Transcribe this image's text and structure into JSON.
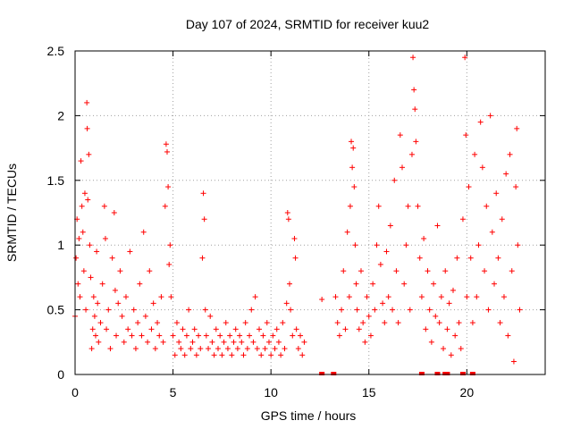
{
  "chart_data": {
    "type": "scatter",
    "title": "Day 107 of 2024, SRMTID for receiver kuu2",
    "xlabel": "GPS time / hours",
    "ylabel": "SRMTID / TECUs",
    "xlim": [
      0,
      24
    ],
    "ylim": [
      0,
      2.5
    ],
    "xticks": [
      0,
      5,
      10,
      15,
      20
    ],
    "xtick_labels": [
      "0",
      "5",
      "10",
      "15",
      "20"
    ],
    "yticks": [
      0,
      0.5,
      1,
      1.5,
      2,
      2.5
    ],
    "ytick_labels": [
      "0",
      "0.5",
      "1",
      "1.5",
      "2",
      "2.5"
    ],
    "grid": true,
    "marker": "plus",
    "color": "#ff0000",
    "series": [
      {
        "name": "SRMTID",
        "points": [
          [
            0.0,
            0.45
          ],
          [
            0.05,
            0.9
          ],
          [
            0.1,
            1.2
          ],
          [
            0.15,
            0.7
          ],
          [
            0.2,
            1.05
          ],
          [
            0.25,
            0.6
          ],
          [
            0.3,
            1.65
          ],
          [
            0.35,
            1.3
          ],
          [
            0.4,
            1.1
          ],
          [
            0.45,
            0.8
          ],
          [
            0.5,
            1.4
          ],
          [
            0.55,
            0.5
          ],
          [
            0.6,
            2.1
          ],
          [
            0.62,
            1.9
          ],
          [
            0.65,
            1.35
          ],
          [
            0.7,
            1.7
          ],
          [
            0.75,
            1.0
          ],
          [
            0.8,
            0.75
          ],
          [
            0.85,
            0.2
          ],
          [
            0.9,
            0.35
          ],
          [
            0.95,
            0.6
          ],
          [
            1.0,
            0.45
          ],
          [
            1.05,
            0.3
          ],
          [
            1.1,
            0.95
          ],
          [
            1.15,
            0.55
          ],
          [
            1.2,
            0.25
          ],
          [
            1.3,
            0.4
          ],
          [
            1.4,
            0.7
          ],
          [
            1.5,
            1.3
          ],
          [
            1.55,
            1.05
          ],
          [
            1.6,
            0.35
          ],
          [
            1.7,
            0.5
          ],
          [
            1.8,
            0.2
          ],
          [
            1.9,
            0.9
          ],
          [
            2.0,
            1.25
          ],
          [
            2.05,
            0.65
          ],
          [
            2.1,
            0.3
          ],
          [
            2.2,
            0.55
          ],
          [
            2.3,
            0.8
          ],
          [
            2.4,
            0.45
          ],
          [
            2.5,
            0.25
          ],
          [
            2.6,
            0.6
          ],
          [
            2.7,
            0.35
          ],
          [
            2.8,
            0.95
          ],
          [
            2.9,
            0.3
          ],
          [
            3.0,
            0.5
          ],
          [
            3.1,
            0.2
          ],
          [
            3.2,
            0.4
          ],
          [
            3.3,
            0.7
          ],
          [
            3.4,
            0.3
          ],
          [
            3.5,
            1.1
          ],
          [
            3.6,
            0.45
          ],
          [
            3.7,
            0.25
          ],
          [
            3.8,
            0.8
          ],
          [
            3.9,
            0.35
          ],
          [
            4.0,
            0.55
          ],
          [
            4.1,
            0.2
          ],
          [
            4.2,
            0.4
          ],
          [
            4.3,
            0.3
          ],
          [
            4.4,
            0.6
          ],
          [
            4.5,
            0.25
          ],
          [
            4.6,
            1.3
          ],
          [
            4.65,
            1.78
          ],
          [
            4.7,
            1.72
          ],
          [
            4.75,
            1.45
          ],
          [
            4.8,
            0.85
          ],
          [
            4.85,
            1.0
          ],
          [
            4.9,
            0.6
          ],
          [
            5.0,
            0.3
          ],
          [
            5.1,
            0.15
          ],
          [
            5.2,
            0.4
          ],
          [
            5.3,
            0.25
          ],
          [
            5.4,
            0.2
          ],
          [
            5.5,
            0.35
          ],
          [
            5.6,
            0.15
          ],
          [
            5.7,
            0.3
          ],
          [
            5.8,
            0.5
          ],
          [
            5.9,
            0.2
          ],
          [
            6.0,
            0.25
          ],
          [
            6.1,
            0.35
          ],
          [
            6.2,
            0.15
          ],
          [
            6.3,
            0.3
          ],
          [
            6.4,
            0.2
          ],
          [
            6.5,
            0.9
          ],
          [
            6.55,
            1.4
          ],
          [
            6.6,
            1.2
          ],
          [
            6.65,
            0.5
          ],
          [
            6.7,
            0.3
          ],
          [
            6.8,
            0.2
          ],
          [
            6.9,
            0.45
          ],
          [
            7.0,
            0.25
          ],
          [
            7.1,
            0.15
          ],
          [
            7.2,
            0.35
          ],
          [
            7.3,
            0.2
          ],
          [
            7.4,
            0.3
          ],
          [
            7.5,
            0.15
          ],
          [
            7.6,
            0.25
          ],
          [
            7.7,
            0.4
          ],
          [
            7.8,
            0.2
          ],
          [
            7.9,
            0.3
          ],
          [
            8.0,
            0.15
          ],
          [
            8.1,
            0.25
          ],
          [
            8.2,
            0.35
          ],
          [
            8.3,
            0.2
          ],
          [
            8.4,
            0.3
          ],
          [
            8.5,
            0.25
          ],
          [
            8.6,
            0.15
          ],
          [
            8.7,
            0.4
          ],
          [
            8.8,
            0.2
          ],
          [
            8.9,
            0.3
          ],
          [
            9.0,
            0.5
          ],
          [
            9.1,
            0.25
          ],
          [
            9.2,
            0.6
          ],
          [
            9.3,
            0.2
          ],
          [
            9.4,
            0.35
          ],
          [
            9.5,
            0.15
          ],
          [
            9.6,
            0.3
          ],
          [
            9.7,
            0.2
          ],
          [
            9.8,
            0.4
          ],
          [
            9.9,
            0.25
          ],
          [
            10.0,
            0.15
          ],
          [
            10.1,
            0.3
          ],
          [
            10.2,
            0.2
          ],
          [
            10.3,
            0.35
          ],
          [
            10.4,
            0.25
          ],
          [
            10.5,
            0.15
          ],
          [
            10.6,
            0.4
          ],
          [
            10.7,
            0.2
          ],
          [
            10.8,
            0.55
          ],
          [
            10.85,
            1.25
          ],
          [
            10.9,
            1.2
          ],
          [
            10.95,
            0.7
          ],
          [
            11.0,
            0.5
          ],
          [
            11.1,
            0.3
          ],
          [
            11.2,
            1.05
          ],
          [
            11.25,
            0.9
          ],
          [
            11.3,
            0.35
          ],
          [
            11.4,
            0.2
          ],
          [
            11.5,
            0.3
          ],
          [
            11.6,
            0.15
          ],
          [
            11.7,
            0.25
          ],
          [
            12.6,
            0.58
          ],
          [
            13.3,
            0.6
          ],
          [
            13.4,
            0.4
          ],
          [
            13.5,
            0.3
          ],
          [
            13.6,
            0.5
          ],
          [
            13.7,
            0.8
          ],
          [
            13.8,
            0.35
          ],
          [
            13.9,
            1.1
          ],
          [
            14.0,
            0.6
          ],
          [
            14.05,
            1.3
          ],
          [
            14.1,
            1.8
          ],
          [
            14.15,
            1.6
          ],
          [
            14.2,
            1.75
          ],
          [
            14.25,
            1.45
          ],
          [
            14.3,
            1.0
          ],
          [
            14.35,
            0.7
          ],
          [
            14.4,
            0.5
          ],
          [
            14.5,
            0.35
          ],
          [
            14.6,
            0.8
          ],
          [
            14.7,
            0.4
          ],
          [
            14.8,
            0.25
          ],
          [
            14.9,
            0.6
          ],
          [
            15.0,
            0.45
          ],
          [
            15.1,
            0.3
          ],
          [
            15.2,
            0.7
          ],
          [
            15.3,
            0.5
          ],
          [
            15.4,
            1.0
          ],
          [
            15.5,
            1.3
          ],
          [
            15.6,
            0.85
          ],
          [
            15.7,
            0.55
          ],
          [
            15.8,
            0.4
          ],
          [
            15.9,
            0.95
          ],
          [
            16.0,
            0.6
          ],
          [
            16.1,
            1.15
          ],
          [
            16.2,
            0.5
          ],
          [
            16.3,
            1.5
          ],
          [
            16.4,
            0.8
          ],
          [
            16.5,
            0.4
          ],
          [
            16.6,
            1.85
          ],
          [
            16.7,
            1.6
          ],
          [
            16.8,
            0.7
          ],
          [
            16.9,
            1.0
          ],
          [
            17.0,
            1.3
          ],
          [
            17.1,
            0.5
          ],
          [
            17.2,
            1.7
          ],
          [
            17.25,
            2.45
          ],
          [
            17.3,
            2.2
          ],
          [
            17.35,
            2.05
          ],
          [
            17.4,
            1.8
          ],
          [
            17.5,
            1.3
          ],
          [
            17.6,
            0.9
          ],
          [
            17.7,
            0.6
          ],
          [
            17.8,
            1.05
          ],
          [
            17.9,
            0.35
          ],
          [
            18.0,
            0.8
          ],
          [
            18.1,
            0.5
          ],
          [
            18.2,
            0.25
          ],
          [
            18.3,
            0.7
          ],
          [
            18.4,
            0.45
          ],
          [
            18.5,
            1.15
          ],
          [
            18.6,
            0.4
          ],
          [
            18.7,
            0.6
          ],
          [
            18.8,
            0.2
          ],
          [
            18.9,
            0.8
          ],
          [
            19.0,
            0.35
          ],
          [
            19.1,
            0.55
          ],
          [
            19.2,
            0.15
          ],
          [
            19.3,
            0.65
          ],
          [
            19.4,
            0.3
          ],
          [
            19.5,
            0.9
          ],
          [
            19.6,
            0.4
          ],
          [
            19.7,
            0.2
          ],
          [
            19.8,
            1.2
          ],
          [
            19.9,
            2.45
          ],
          [
            19.95,
            1.85
          ],
          [
            20.0,
            0.6
          ],
          [
            20.1,
            1.45
          ],
          [
            20.2,
            0.9
          ],
          [
            20.3,
            0.4
          ],
          [
            20.4,
            1.7
          ],
          [
            20.5,
            0.6
          ],
          [
            20.6,
            1.0
          ],
          [
            20.7,
            1.95
          ],
          [
            20.8,
            1.6
          ],
          [
            20.9,
            0.8
          ],
          [
            21.0,
            1.3
          ],
          [
            21.1,
            0.5
          ],
          [
            21.2,
            2.0
          ],
          [
            21.3,
            1.1
          ],
          [
            21.4,
            0.7
          ],
          [
            21.5,
            1.4
          ],
          [
            21.6,
            0.9
          ],
          [
            21.7,
            0.4
          ],
          [
            21.8,
            1.2
          ],
          [
            21.9,
            0.6
          ],
          [
            22.0,
            1.55
          ],
          [
            22.1,
            0.3
          ],
          [
            22.2,
            1.7
          ],
          [
            22.3,
            0.8
          ],
          [
            22.4,
            0.1
          ],
          [
            22.5,
            1.45
          ],
          [
            22.55,
            1.9
          ],
          [
            22.6,
            1.0
          ],
          [
            22.7,
            0.5
          ]
        ],
        "zero_points": [
          12.6,
          13.2,
          17.7,
          18.5,
          18.9,
          19.0,
          19.8,
          20.3
        ]
      }
    ]
  }
}
